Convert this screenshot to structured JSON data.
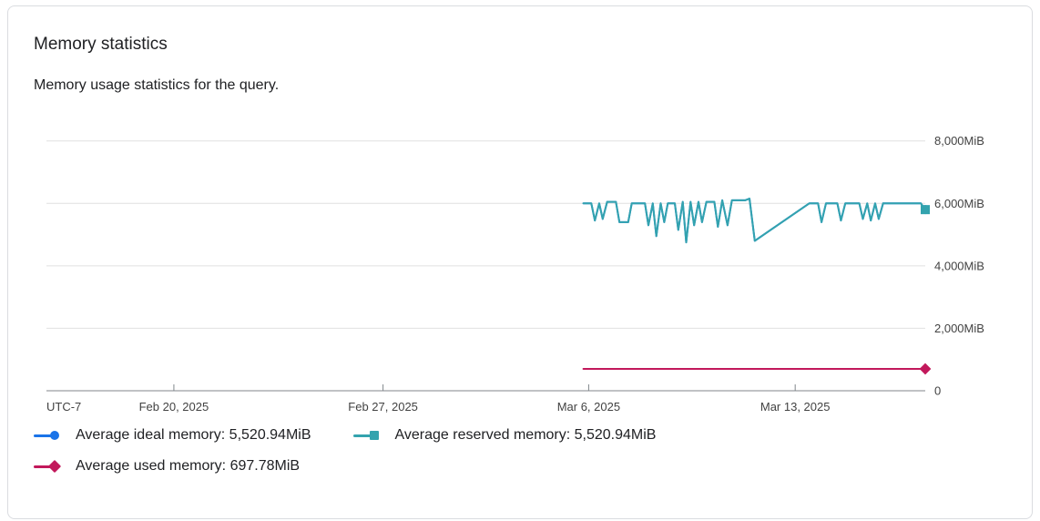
{
  "card": {
    "title": "Memory statistics",
    "subtitle": "Memory usage statistics for the query."
  },
  "chart_data": {
    "type": "line",
    "title": "Memory statistics",
    "xlabel": "",
    "ylabel": "",
    "grid": true,
    "legend_position": "bottom",
    "x_axis": {
      "timezone_label": "UTC-7",
      "ticks": [
        {
          "label": "Feb 20, 2025",
          "f": 0.145
        },
        {
          "label": "Feb 27, 2025",
          "f": 0.383
        },
        {
          "label": "Mar 6, 2025",
          "f": 0.617
        },
        {
          "label": "Mar 13, 2025",
          "f": 0.852
        }
      ]
    },
    "y_axis": {
      "side": "right",
      "min": 0,
      "max": 8400,
      "ticks": [
        {
          "label": "0",
          "value": 0
        },
        {
          "label": "2,000MiB",
          "value": 2000
        },
        {
          "label": "4,000MiB",
          "value": 4000
        },
        {
          "label": "6,000MiB",
          "value": 6000
        },
        {
          "label": "8,000MiB",
          "value": 8000
        }
      ]
    },
    "series": [
      {
        "name": "Average ideal memory",
        "legend_label": "Average ideal memory:  5,520.94MiB",
        "average_value_label": "5,520.94MiB",
        "color": "#1a73e8",
        "marker": "circle",
        "points": [
          [
            0.611,
            6000
          ],
          [
            0.62,
            6000
          ],
          [
            0.624,
            5450
          ],
          [
            0.629,
            6000
          ],
          [
            0.633,
            5500
          ],
          [
            0.638,
            6050
          ],
          [
            0.648,
            6050
          ],
          [
            0.652,
            5400
          ],
          [
            0.662,
            5400
          ],
          [
            0.666,
            6000
          ],
          [
            0.681,
            6000
          ],
          [
            0.685,
            5300
          ],
          [
            0.69,
            6000
          ],
          [
            0.694,
            4950
          ],
          [
            0.699,
            6000
          ],
          [
            0.703,
            5400
          ],
          [
            0.707,
            6000
          ],
          [
            0.715,
            6000
          ],
          [
            0.719,
            5150
          ],
          [
            0.724,
            6050
          ],
          [
            0.728,
            4750
          ],
          [
            0.733,
            6050
          ],
          [
            0.737,
            5300
          ],
          [
            0.742,
            6050
          ],
          [
            0.746,
            5400
          ],
          [
            0.751,
            6050
          ],
          [
            0.76,
            6050
          ],
          [
            0.764,
            5250
          ],
          [
            0.769,
            6100
          ],
          [
            0.775,
            5300
          ],
          [
            0.78,
            6100
          ],
          [
            0.795,
            6100
          ],
          [
            0.8,
            6150
          ],
          [
            0.806,
            4800
          ],
          [
            0.868,
            6000
          ],
          [
            0.878,
            6000
          ],
          [
            0.882,
            5400
          ],
          [
            0.887,
            6000
          ],
          [
            0.9,
            6000
          ],
          [
            0.904,
            5450
          ],
          [
            0.909,
            6000
          ],
          [
            0.925,
            6000
          ],
          [
            0.929,
            5500
          ],
          [
            0.934,
            6000
          ],
          [
            0.938,
            5450
          ],
          [
            0.943,
            6000
          ],
          [
            0.947,
            5500
          ],
          [
            0.952,
            6000
          ],
          [
            0.995,
            6000
          ],
          [
            1.0,
            5800
          ]
        ]
      },
      {
        "name": "Average reserved memory",
        "legend_label": "Average reserved memory:  5,520.94MiB",
        "average_value_label": "5,520.94MiB",
        "color": "#33a3ae",
        "marker": "square",
        "points": [
          [
            0.611,
            6000
          ],
          [
            0.62,
            6000
          ],
          [
            0.624,
            5450
          ],
          [
            0.629,
            6000
          ],
          [
            0.633,
            5500
          ],
          [
            0.638,
            6050
          ],
          [
            0.648,
            6050
          ],
          [
            0.652,
            5400
          ],
          [
            0.662,
            5400
          ],
          [
            0.666,
            6000
          ],
          [
            0.681,
            6000
          ],
          [
            0.685,
            5300
          ],
          [
            0.69,
            6000
          ],
          [
            0.694,
            4950
          ],
          [
            0.699,
            6000
          ],
          [
            0.703,
            5400
          ],
          [
            0.707,
            6000
          ],
          [
            0.715,
            6000
          ],
          [
            0.719,
            5150
          ],
          [
            0.724,
            6050
          ],
          [
            0.728,
            4750
          ],
          [
            0.733,
            6050
          ],
          [
            0.737,
            5300
          ],
          [
            0.742,
            6050
          ],
          [
            0.746,
            5400
          ],
          [
            0.751,
            6050
          ],
          [
            0.76,
            6050
          ],
          [
            0.764,
            5250
          ],
          [
            0.769,
            6100
          ],
          [
            0.775,
            5300
          ],
          [
            0.78,
            6100
          ],
          [
            0.795,
            6100
          ],
          [
            0.8,
            6150
          ],
          [
            0.806,
            4800
          ],
          [
            0.868,
            6000
          ],
          [
            0.878,
            6000
          ],
          [
            0.882,
            5400
          ],
          [
            0.887,
            6000
          ],
          [
            0.9,
            6000
          ],
          [
            0.904,
            5450
          ],
          [
            0.909,
            6000
          ],
          [
            0.925,
            6000
          ],
          [
            0.929,
            5500
          ],
          [
            0.934,
            6000
          ],
          [
            0.938,
            5450
          ],
          [
            0.943,
            6000
          ],
          [
            0.947,
            5500
          ],
          [
            0.952,
            6000
          ],
          [
            0.995,
            6000
          ],
          [
            1.0,
            5800
          ]
        ]
      },
      {
        "name": "Average used memory",
        "legend_label": "Average used memory:  697.78MiB",
        "average_value_label": "697.78MiB",
        "color": "#c2185b",
        "marker": "diamond",
        "points": [
          [
            0.611,
            700
          ],
          [
            1.0,
            700
          ]
        ]
      }
    ],
    "style": {
      "grid_color": "#e0e0e0",
      "axis_color": "#80868b",
      "tick_label_color": "#424242"
    }
  }
}
